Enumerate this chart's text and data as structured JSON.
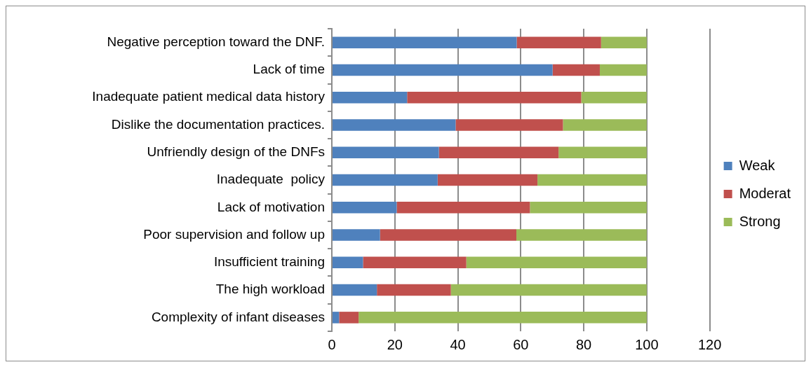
{
  "chart_data": {
    "type": "bar",
    "orientation": "horizontal",
    "stacked": true,
    "categories": [
      "Negative perception toward the DNF.",
      "Lack of time",
      "Inadequate patient medical data history",
      "Dislike the documentation practices.",
      "Unfriendly design of the DNFs",
      "Inadequate  policy",
      "Lack of motivation",
      "Poor supervision and follow up",
      "Insufficient training",
      "The high workload",
      "Complexity of infant diseases"
    ],
    "series": [
      {
        "name": "Weak",
        "color": "#4f81bd",
        "values": [
          58.7,
          70.1,
          23.9,
          39.3,
          34.0,
          33.6,
          20.6,
          15.3,
          9.9,
          14.3,
          2.3
        ]
      },
      {
        "name": "Moderat",
        "color": "#c0504d",
        "values": [
          26.8,
          15.0,
          55.3,
          34.1,
          38.0,
          31.7,
          42.3,
          43.3,
          32.8,
          23.5,
          6.2
        ]
      },
      {
        "name": "Strong",
        "color": "#9bbb59",
        "values": [
          14.5,
          14.9,
          20.8,
          26.6,
          28.0,
          34.7,
          37.1,
          41.4,
          57.3,
          62.2,
          91.5
        ]
      }
    ],
    "xlim": [
      0,
      120
    ],
    "xticks": [
      0,
      20,
      40,
      60,
      80,
      100,
      120
    ],
    "grid": "x",
    "legend": "right"
  }
}
